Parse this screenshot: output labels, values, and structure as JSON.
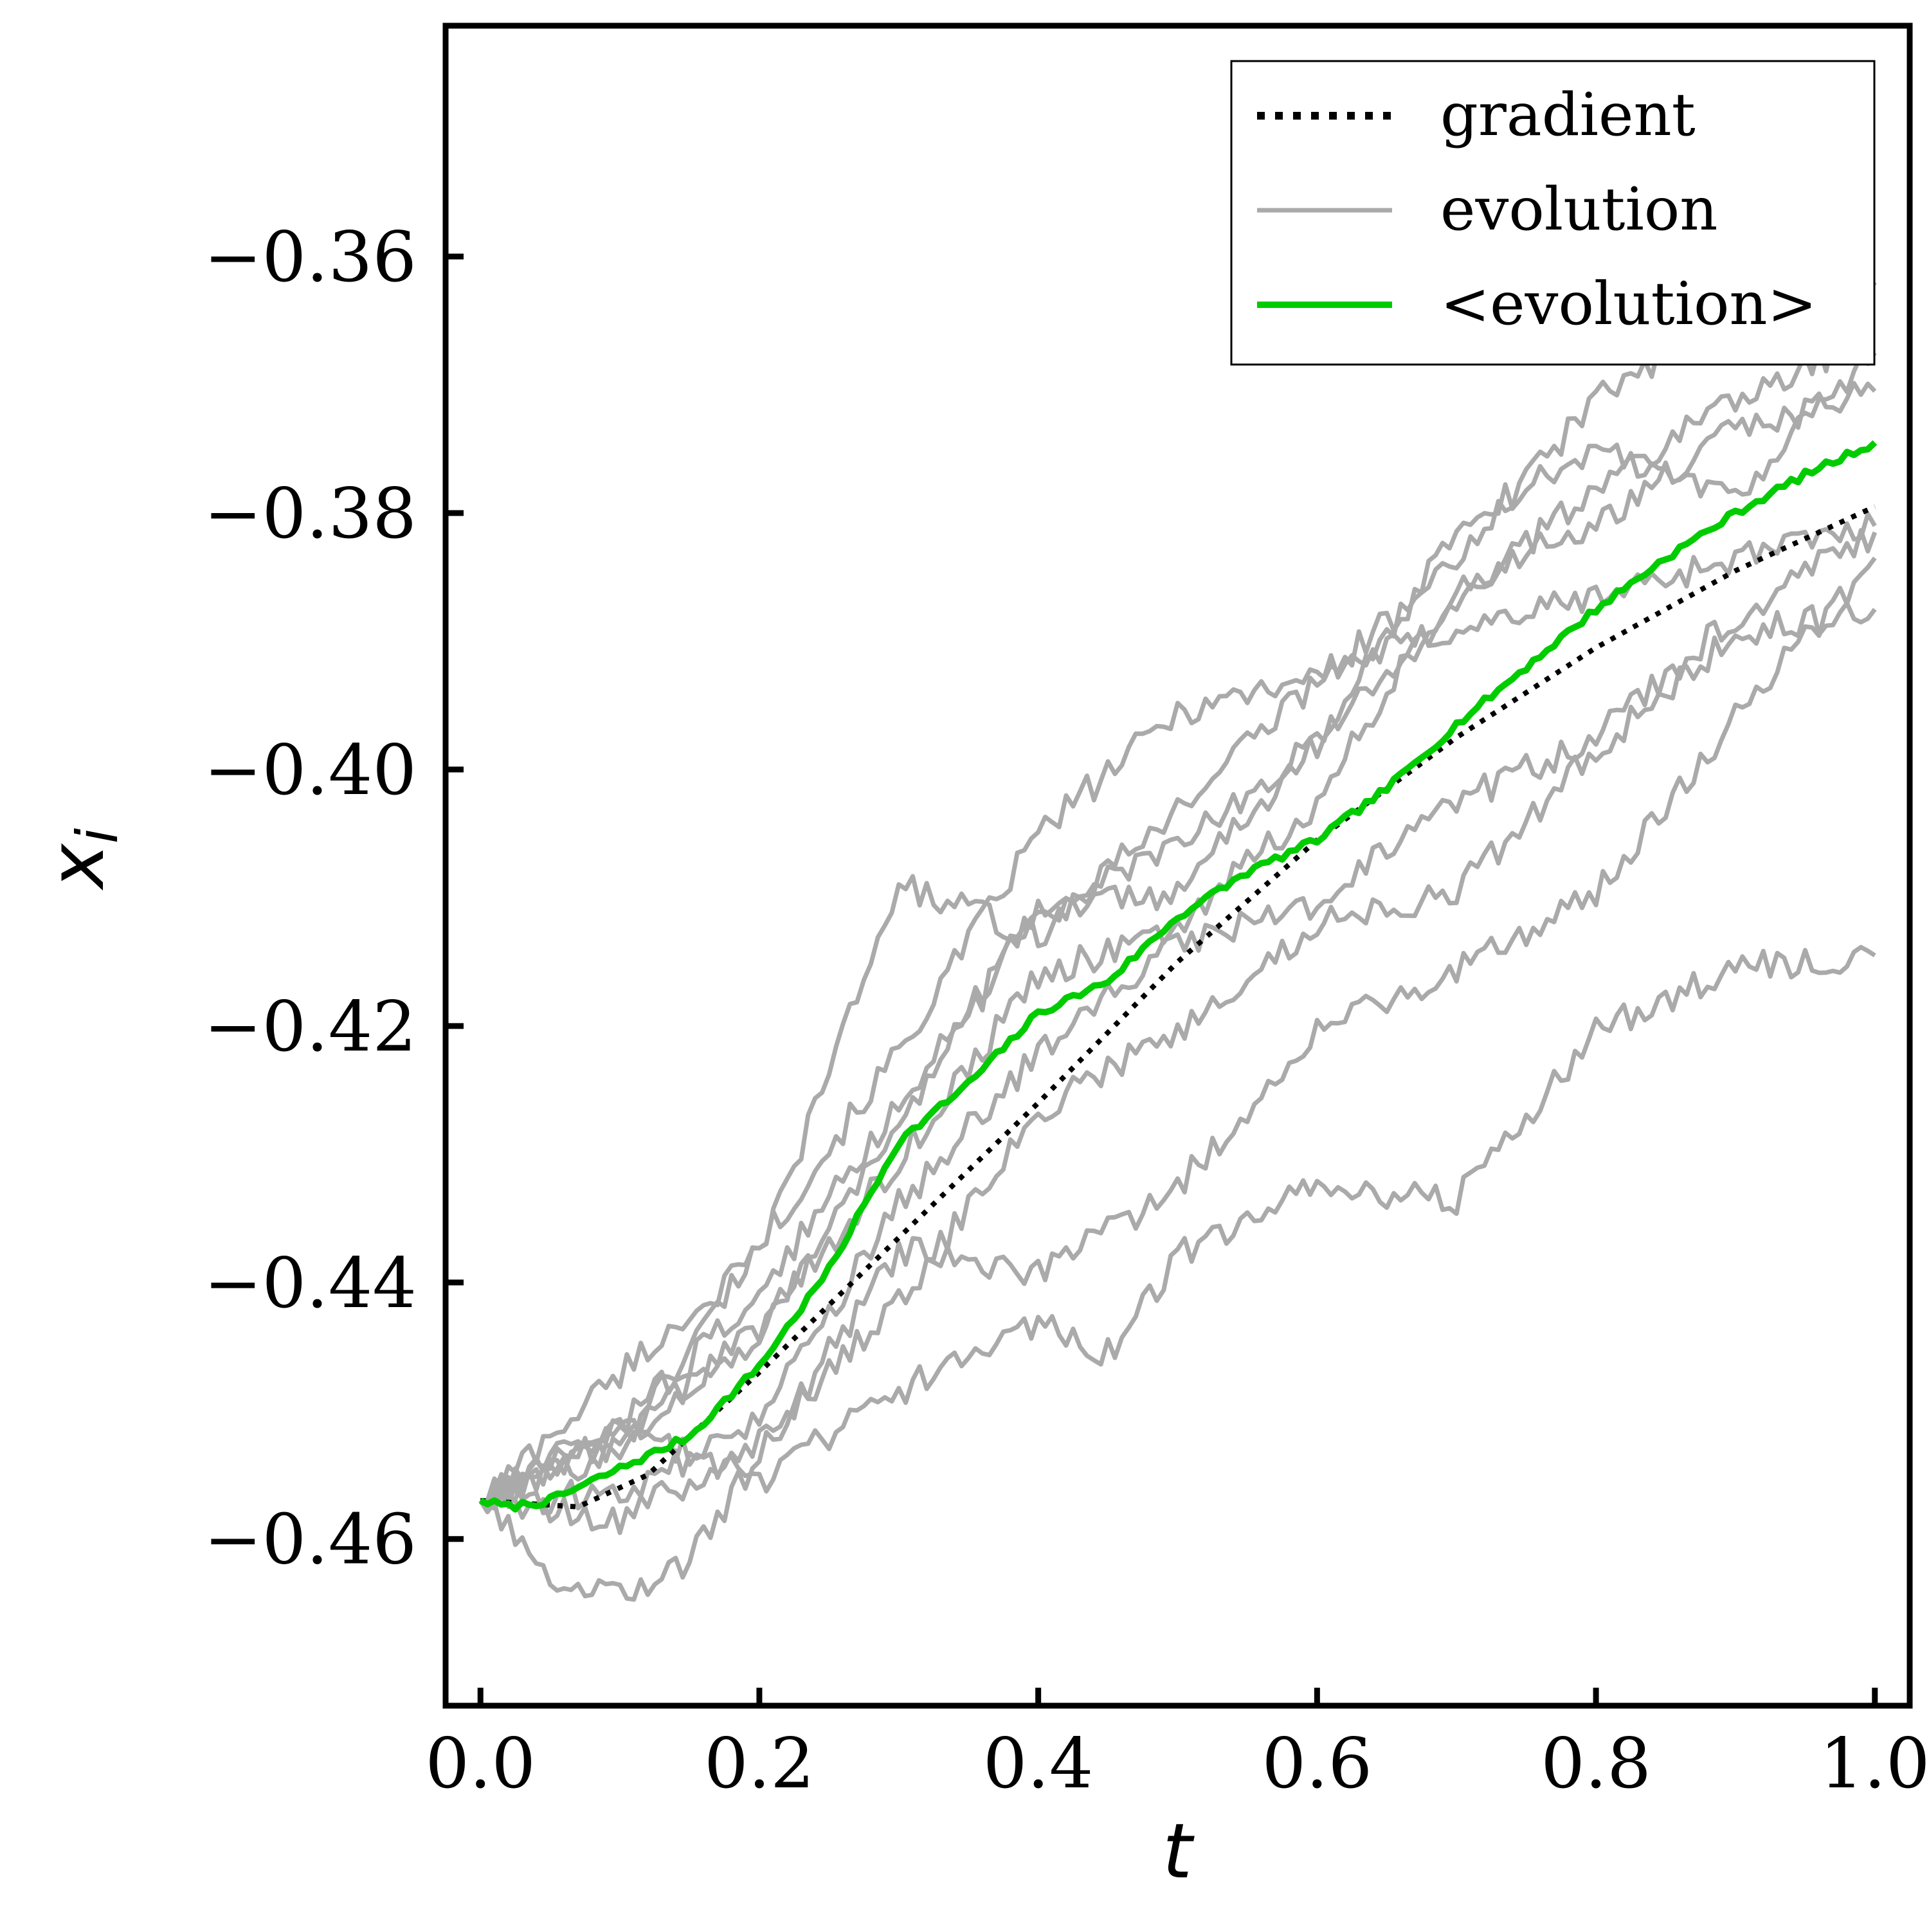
{
  "chart_data": {
    "type": "line",
    "xlabel": "t",
    "ylabel": "x",
    "ylabel_subscript": "i",
    "xlim": [
      -0.025,
      1.025
    ],
    "ylim": [
      -0.473,
      -0.342
    ],
    "xticks": [
      0.0,
      0.2,
      0.4,
      0.6,
      0.8,
      1.0
    ],
    "xtick_labels": [
      "0.0",
      "0.2",
      "0.4",
      "0.6",
      "0.8",
      "1.0"
    ],
    "yticks": [
      -0.46,
      -0.44,
      -0.42,
      -0.4,
      -0.38,
      -0.36
    ],
    "ytick_labels": [
      "−0.46",
      "−0.44",
      "−0.42",
      "−0.40",
      "−0.38",
      "−0.36"
    ],
    "grid": false,
    "legend_position": "top-right",
    "legend": [
      {
        "label": "gradient",
        "style": "dotted",
        "color": "#000000"
      },
      {
        "label": "evolution",
        "style": "solid",
        "color": "#aaaaaa"
      },
      {
        "label": "<evolution>",
        "style": "solid",
        "color": "#00cc00"
      }
    ],
    "gradient": {
      "name": "gradient",
      "color": "#000000",
      "points": [
        [
          0.0,
          -0.457
        ],
        [
          0.07,
          -0.4575
        ],
        [
          0.12,
          -0.455
        ],
        [
          0.2,
          -0.447
        ],
        [
          0.3,
          -0.4365
        ],
        [
          0.4,
          -0.426
        ],
        [
          0.5,
          -0.415
        ],
        [
          0.6,
          -0.4055
        ],
        [
          0.7,
          -0.3975
        ],
        [
          0.8,
          -0.3905
        ],
        [
          0.9,
          -0.3845
        ],
        [
          1.0,
          -0.3795
        ]
      ]
    },
    "mean_evolution": {
      "name": "<evolution>",
      "color": "#00cc00",
      "points": [
        [
          0.0,
          -0.457
        ],
        [
          0.02,
          -0.4575
        ],
        [
          0.05,
          -0.457
        ],
        [
          0.08,
          -0.4555
        ],
        [
          0.1,
          -0.4545
        ],
        [
          0.15,
          -0.452
        ],
        [
          0.2,
          -0.4465
        ],
        [
          0.25,
          -0.439
        ],
        [
          0.3,
          -0.429
        ],
        [
          0.35,
          -0.4245
        ],
        [
          0.4,
          -0.419
        ],
        [
          0.45,
          -0.4165
        ],
        [
          0.5,
          -0.4115
        ],
        [
          0.55,
          -0.408
        ],
        [
          0.6,
          -0.4055
        ],
        [
          0.65,
          -0.4015
        ],
        [
          0.7,
          -0.3965
        ],
        [
          0.75,
          -0.392
        ],
        [
          0.8,
          -0.3875
        ],
        [
          0.85,
          -0.3835
        ],
        [
          0.9,
          -0.38
        ],
        [
          0.95,
          -0.377
        ],
        [
          1.0,
          -0.3745
        ]
      ]
    },
    "evolution_series": [
      {
        "name": "evolution",
        "points": [
          [
            0.0,
            -0.457
          ],
          [
            0.1,
            -0.453
          ],
          [
            0.2,
            -0.437
          ],
          [
            0.3,
            -0.422
          ],
          [
            0.4,
            -0.405
          ],
          [
            0.5,
            -0.3955
          ],
          [
            0.6,
            -0.3925
          ],
          [
            0.7,
            -0.389
          ],
          [
            0.8,
            -0.3865
          ],
          [
            0.9,
            -0.3835
          ],
          [
            1.0,
            -0.381
          ]
        ]
      },
      {
        "name": "evolution",
        "points": [
          [
            0.0,
            -0.457
          ],
          [
            0.1,
            -0.447
          ],
          [
            0.2,
            -0.438
          ],
          [
            0.3,
            -0.409
          ],
          [
            0.4,
            -0.413
          ],
          [
            0.5,
            -0.403
          ],
          [
            0.6,
            -0.393
          ],
          [
            0.7,
            -0.384
          ],
          [
            0.8,
            -0.371
          ],
          [
            0.9,
            -0.365
          ],
          [
            1.0,
            -0.362
          ]
        ]
      },
      {
        "name": "evolution",
        "points": [
          [
            0.0,
            -0.457
          ],
          [
            0.1,
            -0.452
          ],
          [
            0.2,
            -0.444
          ],
          [
            0.3,
            -0.4275
          ],
          [
            0.4,
            -0.411
          ],
          [
            0.5,
            -0.406
          ],
          [
            0.6,
            -0.398
          ],
          [
            0.7,
            -0.381
          ],
          [
            0.8,
            -0.375
          ],
          [
            0.9,
            -0.3785
          ],
          [
            1.0,
            -0.3675
          ]
        ]
      },
      {
        "name": "evolution",
        "points": [
          [
            0.0,
            -0.457
          ],
          [
            0.1,
            -0.451
          ],
          [
            0.2,
            -0.441
          ],
          [
            0.3,
            -0.426
          ],
          [
            0.4,
            -0.411
          ],
          [
            0.5,
            -0.4095
          ],
          [
            0.6,
            -0.398
          ],
          [
            0.7,
            -0.387
          ],
          [
            0.8,
            -0.378
          ],
          [
            0.9,
            -0.371
          ],
          [
            1.0,
            -0.366
          ]
        ]
      },
      {
        "name": "evolution",
        "points": [
          [
            0.0,
            -0.457
          ],
          [
            0.1,
            -0.4525
          ],
          [
            0.2,
            -0.4435
          ],
          [
            0.3,
            -0.4305
          ],
          [
            0.4,
            -0.416
          ],
          [
            0.5,
            -0.4125
          ],
          [
            0.6,
            -0.4025
          ],
          [
            0.7,
            -0.3855
          ],
          [
            0.8,
            -0.381
          ],
          [
            0.9,
            -0.3735
          ],
          [
            1.0,
            -0.3705
          ]
        ]
      },
      {
        "name": "evolution",
        "points": [
          [
            0.0,
            -0.457
          ],
          [
            0.1,
            -0.4565
          ],
          [
            0.2,
            -0.451
          ],
          [
            0.3,
            -0.434
          ],
          [
            0.4,
            -0.422
          ],
          [
            0.5,
            -0.4135
          ],
          [
            0.6,
            -0.4105
          ],
          [
            0.7,
            -0.4025
          ],
          [
            0.8,
            -0.3975
          ],
          [
            0.9,
            -0.388
          ],
          [
            1.0,
            -0.3815
          ]
        ]
      },
      {
        "name": "evolution",
        "points": [
          [
            0.0,
            -0.457
          ],
          [
            0.1,
            -0.4585
          ],
          [
            0.2,
            -0.4525
          ],
          [
            0.3,
            -0.4415
          ],
          [
            0.4,
            -0.4265
          ],
          [
            0.5,
            -0.4205
          ],
          [
            0.6,
            -0.412
          ],
          [
            0.7,
            -0.4095
          ],
          [
            0.8,
            -0.3985
          ],
          [
            0.9,
            -0.3895
          ],
          [
            1.0,
            -0.3875
          ]
        ]
      },
      {
        "name": "evolution",
        "points": [
          [
            0.0,
            -0.457
          ],
          [
            0.05,
            -0.463
          ],
          [
            0.1,
            -0.4645
          ],
          [
            0.15,
            -0.4615
          ],
          [
            0.2,
            -0.4535
          ],
          [
            0.3,
            -0.4375
          ],
          [
            0.4,
            -0.4395
          ],
          [
            0.5,
            -0.4325
          ],
          [
            0.6,
            -0.4205
          ],
          [
            0.7,
            -0.4155
          ],
          [
            0.8,
            -0.4095
          ],
          [
            0.9,
            -0.396
          ],
          [
            1.0,
            -0.3835
          ]
        ]
      },
      {
        "name": "evolution",
        "points": [
          [
            0.0,
            -0.457
          ],
          [
            0.1,
            -0.4515
          ],
          [
            0.2,
            -0.4555
          ],
          [
            0.3,
            -0.4485
          ],
          [
            0.4,
            -0.443
          ],
          [
            0.45,
            -0.4455
          ],
          [
            0.5,
            -0.438
          ],
          [
            0.6,
            -0.4325
          ],
          [
            0.7,
            -0.4335
          ],
          [
            0.8,
            -0.4205
          ],
          [
            0.9,
            -0.4155
          ],
          [
            1.0,
            -0.4145
          ]
        ]
      }
    ]
  }
}
